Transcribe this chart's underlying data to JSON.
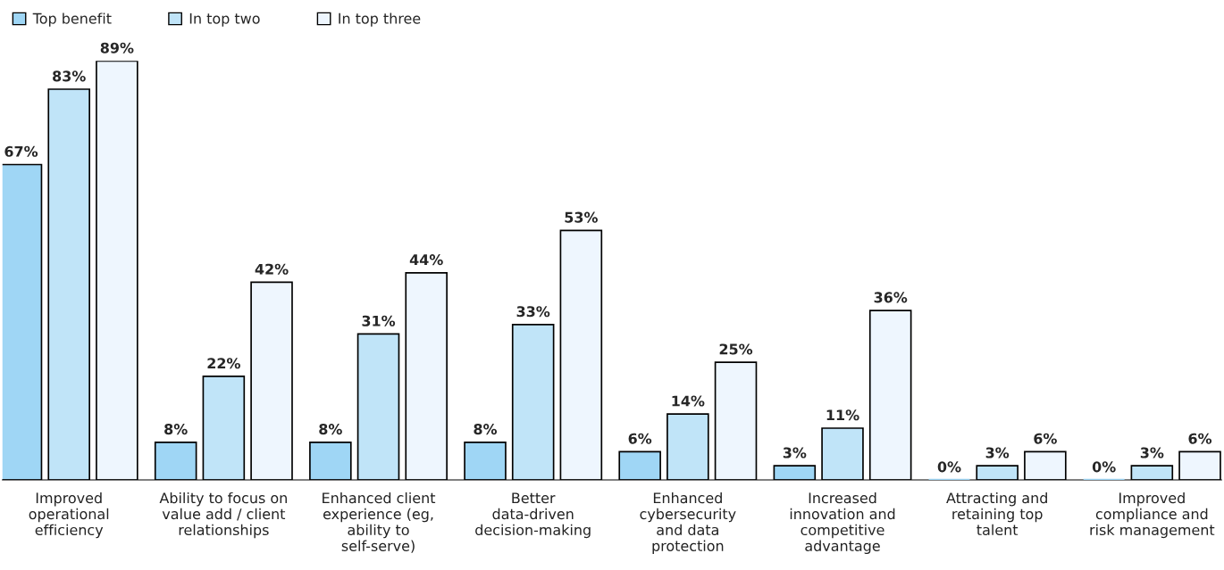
{
  "chart_data": {
    "type": "bar",
    "categories": [
      "Improved\noperational\nefficiency",
      "Ability to focus on\nvalue add / client\nrelationships",
      "Enhanced client\nexperience (eg,\nability to\nself-serve)",
      "Better\ndata-driven\ndecision-making",
      "Enhanced\ncybersecurity\nand data\nprotection",
      "Increased\ninnovation and\ncompetitive\nadvantage",
      "Attracting and\nretaining top\ntalent",
      "Improved\ncompliance and\nrisk management"
    ],
    "series": [
      {
        "name": "Top benefit",
        "color": "#9fd6f5",
        "values": [
          67,
          8,
          8,
          8,
          6,
          3,
          0,
          0
        ],
        "value_labels": [
          "67%",
          "8%",
          "8%",
          "8%",
          "6%",
          "3%",
          "0%",
          "0%"
        ]
      },
      {
        "name": "In top two",
        "color": "#c0e4f8",
        "values": [
          83,
          22,
          31,
          33,
          14,
          11,
          3,
          3
        ],
        "value_labels": [
          "83%",
          "22%",
          "31%",
          "33%",
          "14%",
          "11%",
          "3%",
          "3%"
        ]
      },
      {
        "name": "In top three",
        "color": "#eef6fe",
        "values": [
          89,
          42,
          44,
          53,
          25,
          36,
          6,
          6
        ],
        "value_labels": [
          "89%",
          "42%",
          "44%",
          "53%",
          "25%",
          "36%",
          "6%",
          "6%"
        ]
      }
    ],
    "legend": "top left",
    "grid": false
  }
}
